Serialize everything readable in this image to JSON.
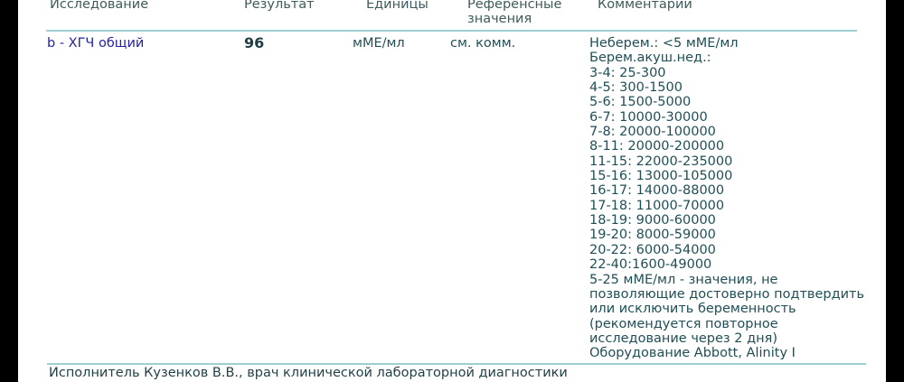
{
  "header": {
    "col_test": "Исследование",
    "col_result": "Результат",
    "col_units": "Единицы",
    "col_reference_line1": "Референсные",
    "col_reference_line2": "значения",
    "col_comment": "Комментарий"
  },
  "row": {
    "test": "b - ХГЧ общий",
    "result": "96",
    "units": "мМЕ/мл",
    "reference": "см. комм.",
    "comment_lines": [
      "Неберем.: <5 мМЕ/мл",
      "Берем.акуш.нед.:",
      "3-4: 25-300",
      "4-5: 300-1500",
      "5-6: 1500-5000",
      "6-7: 10000-30000",
      "7-8: 20000-100000",
      "8-11: 20000-200000",
      "11-15: 22000-235000",
      "15-16: 13000-105000",
      "16-17: 14000-88000",
      "17-18: 11000-70000",
      "18-19: 9000-60000",
      "19-20: 8000-59000",
      "20-22: 6000-54000",
      "22-40:1600-49000",
      "5-25 мМЕ/мл - значения, не",
      "позволяющие достоверно подтвердить",
      "или исключить беременность",
      "(рекомендуется повторное",
      "исследование через 2 дня)",
      "Оборудование Abbott, Alinity I"
    ]
  },
  "footer": {
    "performer": "Исполнитель Кузенков В.В., врач клинической лабораторной диагностики"
  },
  "colors": {
    "accent_line": "#9ccfd0",
    "test_name": "#2323a8"
  }
}
